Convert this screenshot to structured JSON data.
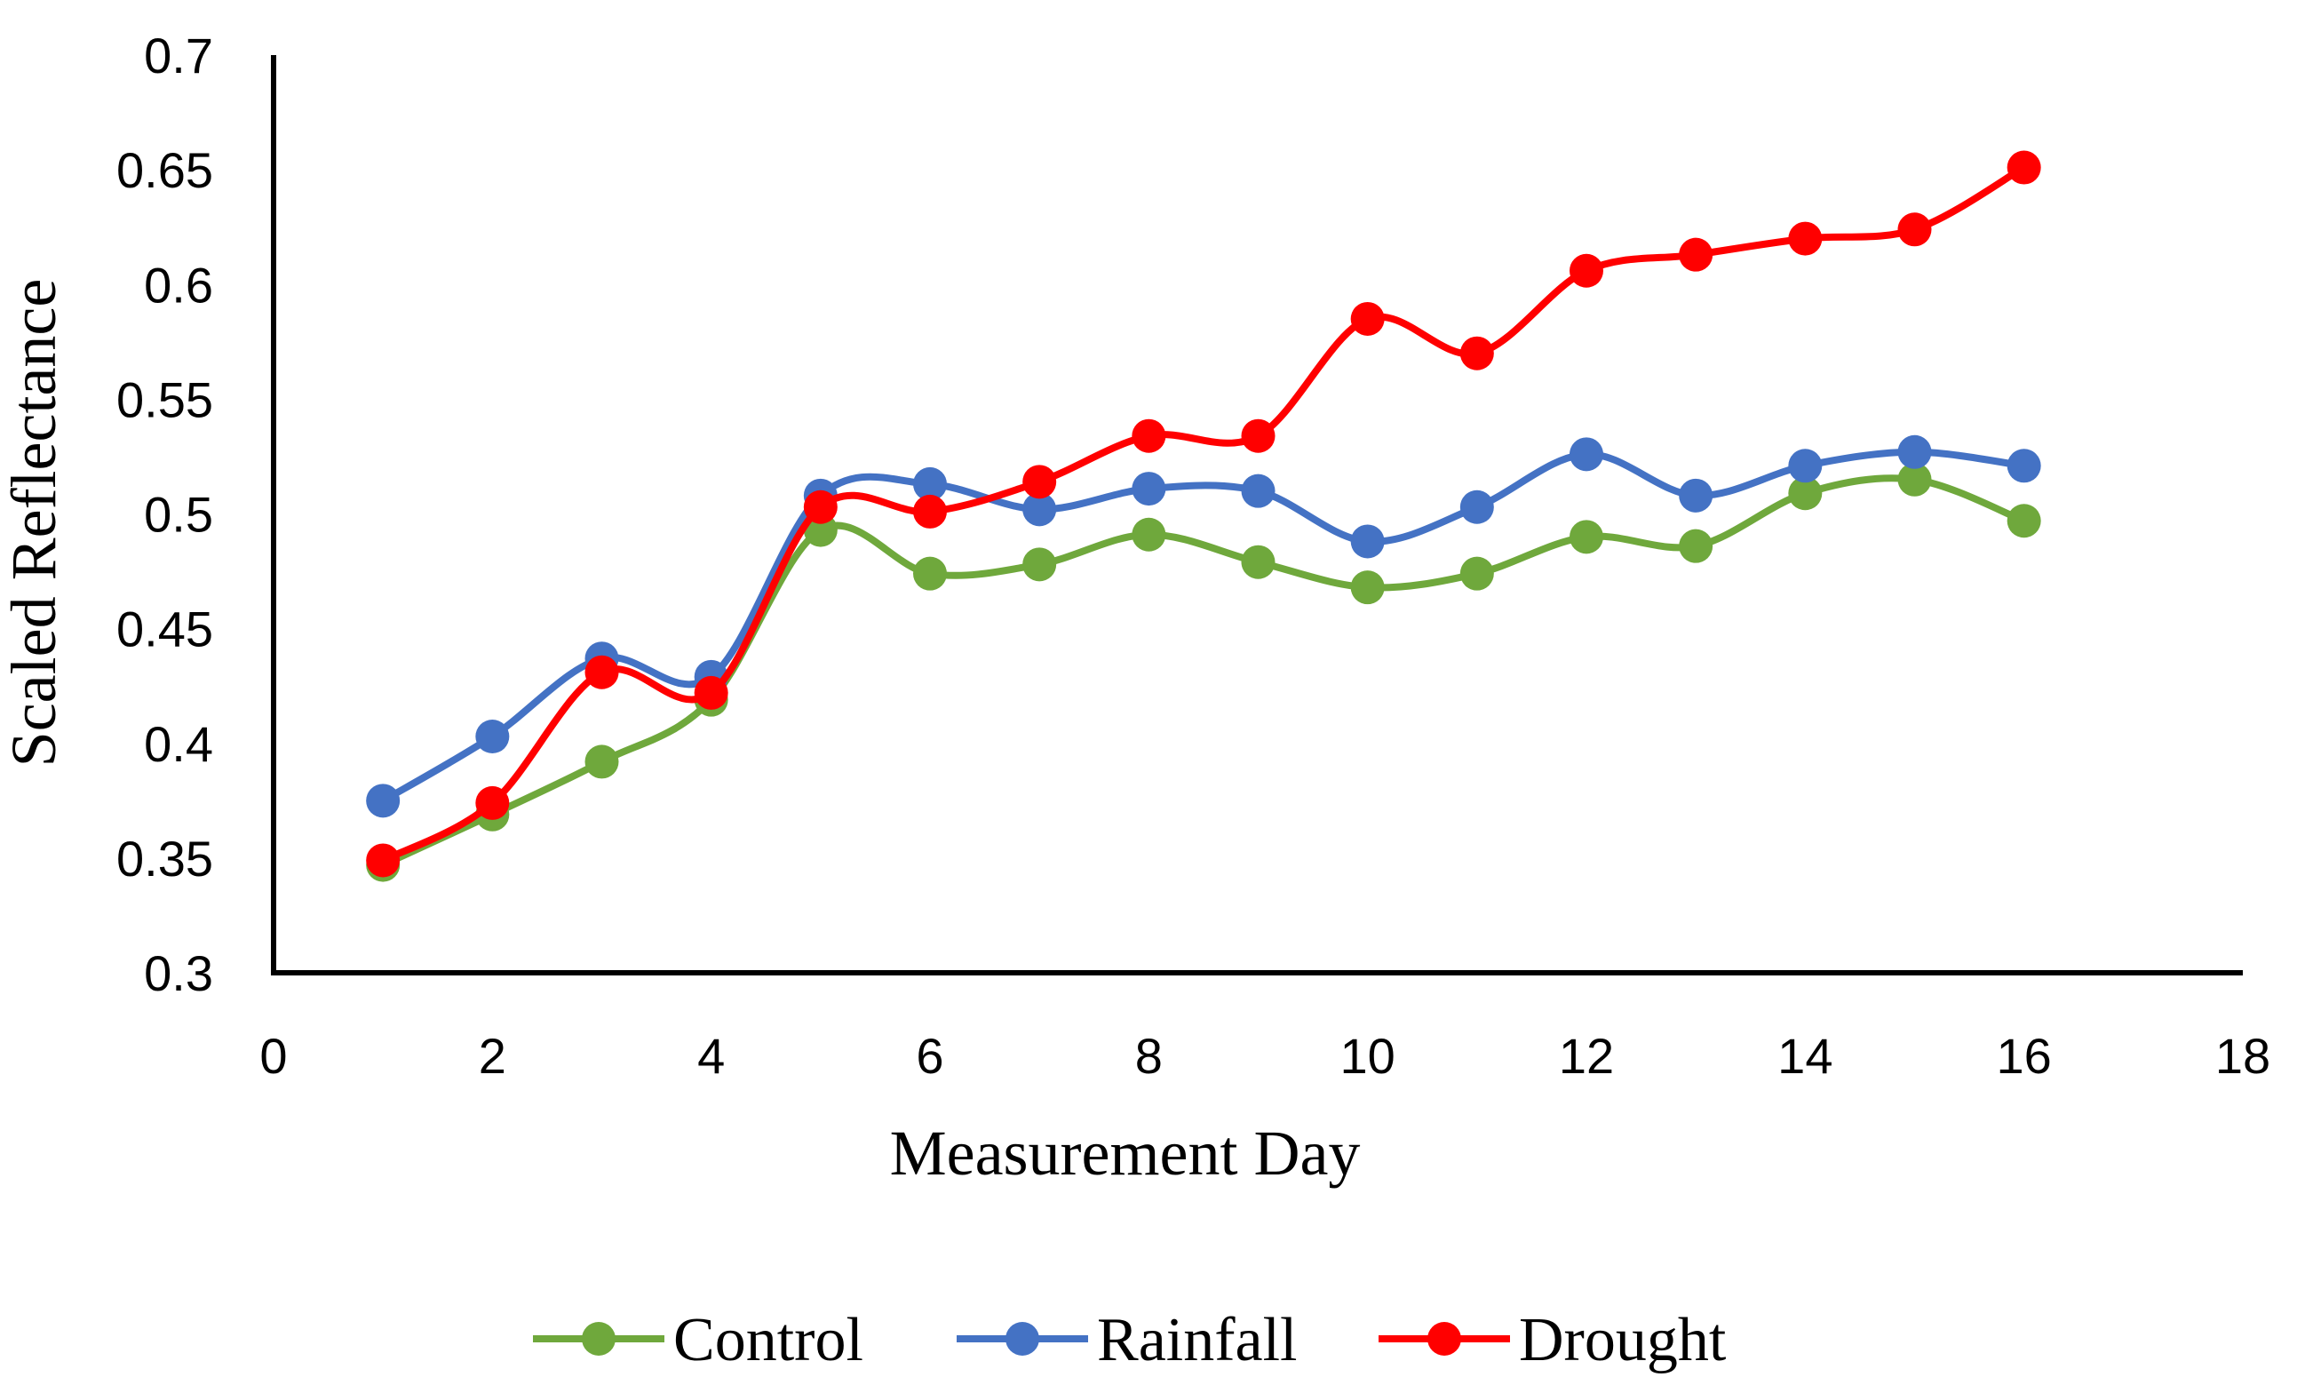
{
  "chart_data": {
    "type": "line",
    "title": "",
    "xlabel": "Measurement Day",
    "ylabel": "Scaled Reflectance",
    "xlim": [
      0,
      18
    ],
    "ylim": [
      0.3,
      0.7
    ],
    "xticks": [
      0,
      2,
      4,
      6,
      8,
      10,
      12,
      14,
      16,
      18
    ],
    "yticks": [
      0.3,
      0.35,
      0.4,
      0.45,
      0.5,
      0.55,
      0.6,
      0.65,
      0.7
    ],
    "xtick_labels": [
      "0",
      "2",
      "4",
      "6",
      "8",
      "10",
      "12",
      "14",
      "16",
      "18"
    ],
    "ytick_labels": [
      "0.3",
      "0.35",
      "0.4",
      "0.45",
      "0.5",
      "0.55",
      "0.6",
      "0.65",
      "0.7"
    ],
    "grid": false,
    "legend_position": "bottom",
    "x": [
      1,
      2,
      3,
      4,
      5,
      6,
      7,
      8,
      9,
      10,
      11,
      12,
      13,
      14,
      15,
      16
    ],
    "series": [
      {
        "name": "Control",
        "color": "#6fa83c",
        "values": [
          0.347,
          0.369,
          0.392,
          0.419,
          0.493,
          0.474,
          0.478,
          0.491,
          0.479,
          0.468,
          0.474,
          0.49,
          0.486,
          0.509,
          0.515,
          0.497
        ]
      },
      {
        "name": "Rainfall",
        "color": "#4472c4",
        "values": [
          0.375,
          0.403,
          0.437,
          0.429,
          0.508,
          0.513,
          0.502,
          0.511,
          0.51,
          0.488,
          0.503,
          0.526,
          0.508,
          0.521,
          0.527,
          0.521
        ]
      },
      {
        "name": "Drought",
        "color": "#ff0000",
        "values": [
          0.349,
          0.374,
          0.431,
          0.422,
          0.503,
          0.501,
          0.514,
          0.534,
          0.534,
          0.585,
          0.57,
          0.606,
          0.613,
          0.62,
          0.624,
          0.651
        ]
      }
    ]
  }
}
